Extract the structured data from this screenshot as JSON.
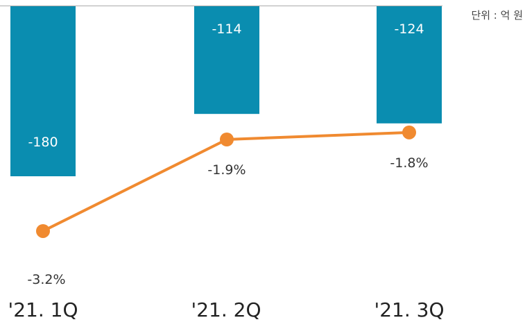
{
  "unit_label": "단위 : 억 원",
  "chart_data": {
    "type": "bar",
    "categories": [
      "'21. 1Q",
      "'21. 2Q",
      "'21. 3Q"
    ],
    "series": [
      {
        "type": "bar",
        "values": [
          -180,
          -114,
          -124
        ],
        "value_labels": [
          "-180",
          "-114",
          "-124"
        ]
      },
      {
        "type": "line",
        "values": [
          -3.2,
          -1.9,
          -1.8
        ],
        "value_labels": [
          "-3.2%",
          "-1.9%",
          "-1.8%"
        ]
      }
    ],
    "colors": {
      "bar": "#0a8db0",
      "line": "#f08a30",
      "bar_text": "#ffffff",
      "text": "#333333",
      "axis": "#aaaaaa"
    }
  }
}
